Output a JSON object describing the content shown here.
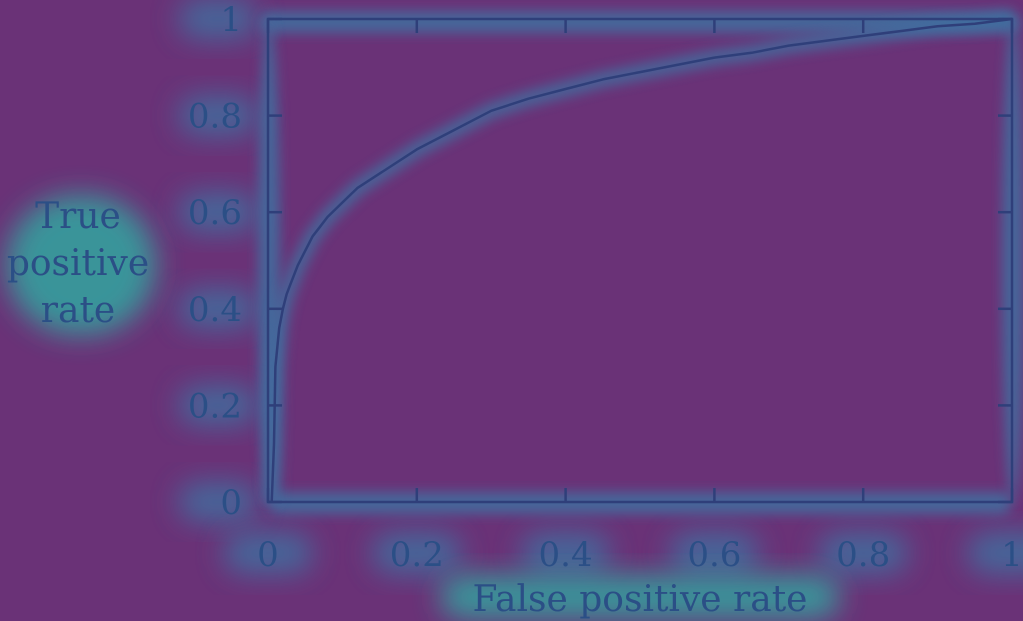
{
  "colors": {
    "background": "#6a3277",
    "line": "#2f3f7a",
    "text": "#2b4f86",
    "glow_mid": "#3f6fa0",
    "glow_hot": "#33a6a0"
  },
  "chart_data": {
    "type": "line",
    "title": "",
    "xlabel": "False positive rate",
    "ylabel_lines": [
      "True",
      "positive",
      "rate"
    ],
    "xlim": [
      0,
      1
    ],
    "ylim": [
      0,
      1
    ],
    "xticks": [
      0,
      0.2,
      0.4,
      0.6,
      0.8,
      1
    ],
    "xtick_labels": [
      "0",
      "0.2",
      "0.4",
      "0.6",
      "0.8",
      "1"
    ],
    "yticks": [
      0,
      0.2,
      0.4,
      0.6,
      0.8,
      1
    ],
    "ytick_labels": [
      "0",
      "0.2",
      "0.4",
      "0.6",
      "0.8",
      "1"
    ],
    "grid": false,
    "legend": "none",
    "series": [
      {
        "x": [
          0.005,
          0.008,
          0.01,
          0.015,
          0.02,
          0.025,
          0.03,
          0.04,
          0.05,
          0.06,
          0.07,
          0.08,
          0.1,
          0.12,
          0.15,
          0.2,
          0.25,
          0.3,
          0.35,
          0.4,
          0.45,
          0.5,
          0.55,
          0.6,
          0.65,
          0.7,
          0.75,
          0.8,
          0.85,
          0.9,
          0.95,
          1.0
        ],
        "y": [
          0.0,
          0.12,
          0.28,
          0.36,
          0.4,
          0.43,
          0.45,
          0.49,
          0.52,
          0.55,
          0.57,
          0.59,
          0.62,
          0.65,
          0.68,
          0.73,
          0.77,
          0.81,
          0.835,
          0.855,
          0.875,
          0.89,
          0.905,
          0.92,
          0.93,
          0.945,
          0.955,
          0.965,
          0.975,
          0.985,
          0.99,
          1.0
        ]
      }
    ]
  }
}
